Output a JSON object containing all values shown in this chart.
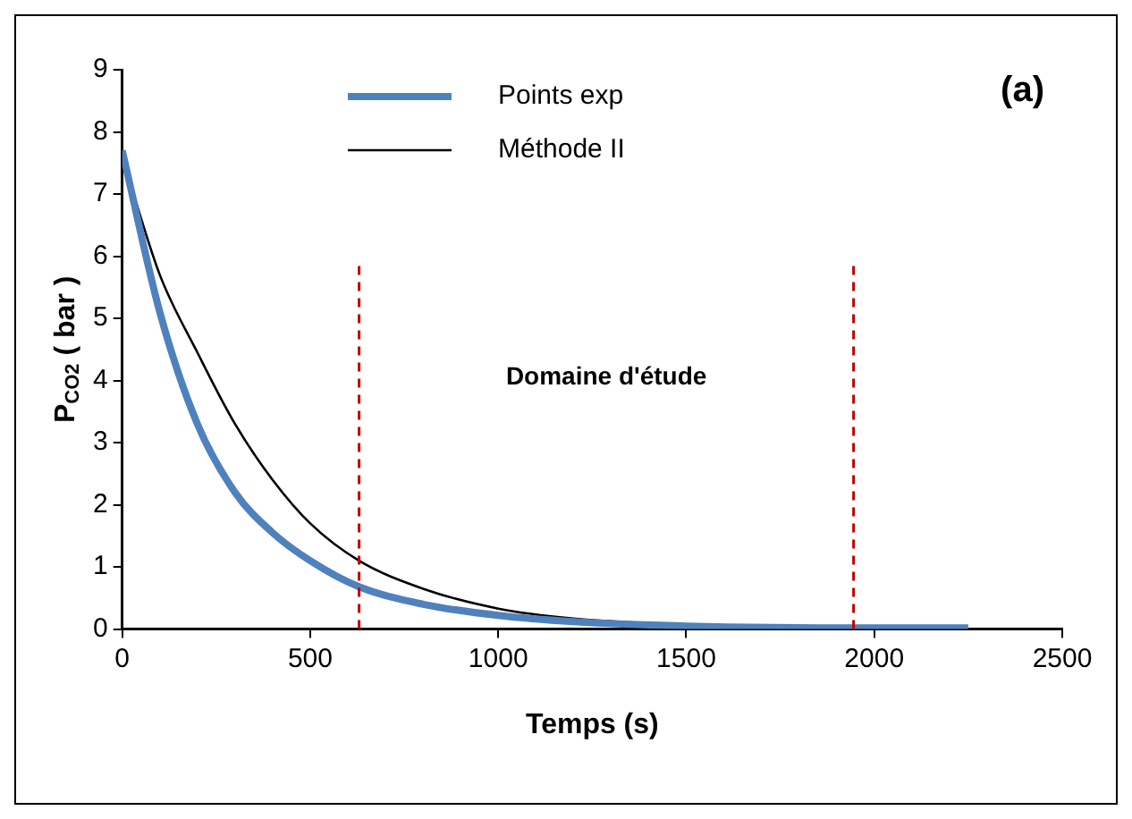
{
  "chart_data": {
    "type": "line",
    "xlabel": "Temps (s)",
    "ylabel": "P$_{CO2}$ ( bar )",
    "annotations": [
      "(a)",
      "Domaine d'étude"
    ],
    "xlim": [
      0,
      2500
    ],
    "xticks": [
      0,
      500,
      1000,
      1500,
      2000,
      2500
    ],
    "ylim": [
      0,
      9
    ],
    "yticks": [
      0,
      1,
      2,
      3,
      4,
      5,
      6,
      7,
      8,
      9
    ],
    "grid": false,
    "legend": "top",
    "marker": "none",
    "ref_lines": [
      {
        "axis": "x",
        "value": 630,
        "color": "#c00000",
        "line_style": "dashed"
      },
      {
        "axis": "x",
        "value": 1945,
        "color": "#c00000",
        "line_style": "dashed"
      }
    ],
    "series": [
      {
        "name": "Points exp",
        "color": "#4f81bd",
        "x": [
          0,
          100,
          200,
          300,
          400,
          500,
          630,
          800,
          1000,
          1200,
          1500,
          2000,
          2250
        ],
        "values": [
          7.7,
          5.1,
          3.3,
          2.2,
          1.55,
          1.1,
          0.68,
          0.4,
          0.22,
          0.12,
          0.05,
          0.02,
          0.02
        ]
      },
      {
        "name": "Méthode II",
        "color": "#000000",
        "x": [
          0,
          100,
          200,
          300,
          400,
          500,
          630,
          800,
          1000,
          1200,
          1500,
          2000
        ],
        "values": [
          7.6,
          5.7,
          4.45,
          3.3,
          2.4,
          1.7,
          1.1,
          0.65,
          0.33,
          0.17,
          0.07,
          0.03
        ]
      }
    ]
  }
}
